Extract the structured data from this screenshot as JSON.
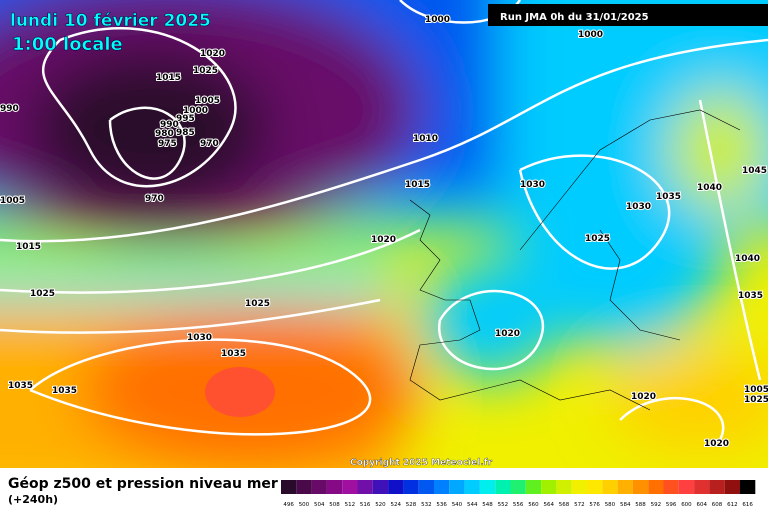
{
  "header": {
    "title": "lundi 10 février 2025",
    "time": "1:00 locale",
    "run": "Run JMA 0h du 31/01/2025"
  },
  "copyright": "Copyright 2025 Meteociel.fr",
  "footer": {
    "title": "Géop z500 et pression niveau mer",
    "lead": "(+240h)"
  },
  "scale": {
    "values": [
      496,
      500,
      504,
      508,
      512,
      516,
      520,
      524,
      528,
      532,
      536,
      540,
      544,
      548,
      552,
      556,
      560,
      564,
      568,
      572,
      576,
      580,
      584,
      588,
      592,
      596,
      600,
      604,
      608,
      612,
      616
    ],
    "colors": [
      "#2a0a2a",
      "#4a0a4a",
      "#680a68",
      "#860a86",
      "#a010a0",
      "#7010a8",
      "#4010b8",
      "#1010c8",
      "#0030e0",
      "#0058f0",
      "#0080ff",
      "#00a8ff",
      "#00ccff",
      "#00eeee",
      "#00f0b0",
      "#20f070",
      "#60f020",
      "#a0f000",
      "#d0f000",
      "#f0f000",
      "#ffe800",
      "#ffd000",
      "#ffb000",
      "#ff9000",
      "#ff7000",
      "#ff5020",
      "#ff4040",
      "#e03030",
      "#b82020",
      "#901010",
      "#000000"
    ]
  },
  "isobar_labels": [
    1000,
    1000,
    1020,
    1025,
    1015,
    1005,
    1000,
    995,
    990,
    985,
    980,
    975,
    970,
    970,
    990,
    1005,
    1015,
    1025,
    1010,
    1015,
    1020,
    1025,
    1030,
    1035,
    1035,
    1035,
    1030,
    1030,
    1035,
    1040,
    1045,
    1040,
    1035,
    1025,
    1020,
    1020,
    1020,
    1025,
    1005
  ]
}
